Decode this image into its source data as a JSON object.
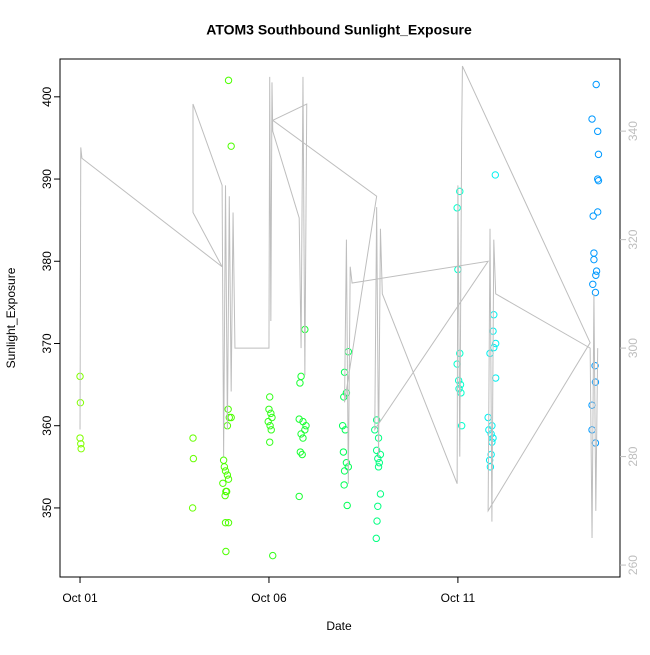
{
  "chart_data": {
    "type": "scatter",
    "title": "ATOM3 Southbound Sunlight_Exposure",
    "x_label": "Date",
    "y_label": "Sunlight_Exposure",
    "xlim": [
      0.47,
      15.29
    ],
    "ylim": [
      341.6,
      404.6
    ],
    "y2lim": [
      257.8,
      353.3
    ],
    "xticks": [
      {
        "value": 1,
        "label": "Oct 01"
      },
      {
        "value": 6,
        "label": "Oct 06"
      },
      {
        "value": 11,
        "label": "Oct 11"
      }
    ],
    "yticks": [
      350,
      360,
      370,
      380,
      390,
      400
    ],
    "y2ticks": [
      260,
      280,
      300,
      320,
      340
    ],
    "groups": [
      {
        "color": "#80ff00",
        "x": [
          1.0,
          1.01,
          1.0,
          1.02,
          1.03
        ],
        "y": [
          366,
          362.8,
          358.5,
          357.8,
          357.2
        ]
      },
      {
        "color": "#66ff00",
        "x": [
          3.99,
          4.0,
          3.98
        ],
        "y": [
          358.5,
          356,
          350
        ]
      },
      {
        "color": "#4dff00",
        "x": [
          4.93,
          5.0,
          4.92,
          4.95,
          5.0,
          4.9,
          4.8,
          4.82,
          4.85,
          4.9,
          4.93,
          4.78,
          4.86,
          4.88,
          4.84,
          4.85,
          4.93,
          4.86
        ],
        "y": [
          402,
          394,
          362,
          361,
          361,
          360,
          355.8,
          355,
          354.5,
          354,
          353.5,
          353,
          352,
          352,
          351.5,
          348.2,
          348.2,
          344.7
        ]
      },
      {
        "color": "#33ff1a",
        "x": [
          6.02,
          6.0,
          6.05,
          6.08,
          5.98,
          6.03,
          6.06,
          6.02,
          6.1
        ],
        "y": [
          363.5,
          362,
          361.5,
          361,
          360.5,
          360,
          359.5,
          358,
          344.2
        ]
      },
      {
        "color": "#1aff33",
        "x": [
          6.95,
          6.85,
          6.82,
          6.8,
          6.9,
          6.98,
          6.95,
          6.85,
          6.9,
          6.83,
          6.88,
          6.8
        ],
        "y": [
          371.7,
          366,
          365.2,
          360.8,
          360.5,
          360,
          359.5,
          359,
          358.5,
          356.8,
          356.5,
          351.4
        ]
      },
      {
        "color": "#00ff55",
        "x": [
          8.1,
          8.0,
          8.05,
          7.98,
          7.95,
          8.02,
          7.97,
          8.05,
          8.1,
          8.0,
          7.99,
          8.07
        ],
        "y": [
          369,
          366.5,
          364,
          363.5,
          360,
          359.5,
          356.8,
          355.5,
          355,
          354.5,
          352.8,
          350.3
        ]
      },
      {
        "color": "#00ff80",
        "x": [
          8.85,
          8.8,
          8.9,
          8.85,
          8.95,
          8.88,
          8.92,
          8.9,
          8.95,
          8.88,
          8.86,
          8.84
        ],
        "y": [
          360.7,
          359.5,
          358.5,
          357,
          356.5,
          356,
          355.5,
          355,
          351.7,
          350.2,
          348.4,
          346.3
        ]
      },
      {
        "color": "#00ffcc",
        "x": [
          11.05,
          10.98,
          11.0,
          11.05,
          10.98,
          11.02,
          11.07,
          11.03,
          11.08,
          11.1
        ],
        "y": [
          388.5,
          386.5,
          379,
          368.8,
          367.5,
          365.5,
          365,
          364.5,
          364,
          360
        ]
      },
      {
        "color": "#00f0f0",
        "x": [
          11.99,
          11.95,
          11.93,
          12.0,
          11.95,
          11.85,
          11.8,
          11.9,
          11.82,
          11.88,
          11.93,
          11.9,
          11.88,
          11.84,
          11.86,
          12.0
        ],
        "y": [
          390.5,
          373.5,
          371.5,
          370,
          369.5,
          368.8,
          361,
          360,
          359.5,
          359,
          358.5,
          358,
          356.5,
          355.8,
          355,
          365.8
        ]
      },
      {
        "color": "#0099ff",
        "x": [
          14.66,
          14.55,
          14.7,
          14.72,
          14.7,
          14.72,
          14.7,
          14.58,
          14.6,
          14.6,
          14.67,
          14.65,
          14.57,
          14.64,
          14.63,
          14.64,
          14.55,
          14.55,
          14.64
        ],
        "y": [
          401.5,
          397.3,
          395.8,
          393,
          390,
          389.8,
          386,
          385.5,
          381,
          380.2,
          378.8,
          378.3,
          377.2,
          376.2,
          367.3,
          365.3,
          362.5,
          359.5,
          357.9
        ]
      }
    ],
    "line": {
      "color": "#bebebe",
      "axis": "y2",
      "x": [
        1.0,
        1.02,
        1.05,
        4.76,
        3.99,
        3.99,
        4.76,
        4.8,
        4.85,
        4.9,
        4.95,
        5.0,
        5.05,
        5.1,
        6.0,
        6.02,
        6.05,
        6.08,
        6.1,
        6.8,
        6.85,
        6.9,
        6.95,
        7.0,
        6.1,
        8.85,
        8.0,
        8.05,
        8.1,
        8.15,
        8.2,
        11.8,
        8.8,
        8.85,
        8.9,
        8.95,
        9.0,
        10.98,
        11.0,
        11.05,
        11.1,
        11.12,
        14.5,
        11.8,
        11.85,
        11.9,
        11.95,
        12.0,
        14.5,
        14.55,
        14.6,
        14.65,
        14.7
      ],
      "values": [
        285,
        337,
        335,
        315,
        325,
        345,
        330,
        280,
        330,
        285,
        328,
        292,
        325,
        300,
        300,
        350,
        305,
        349,
        340,
        324,
        300,
        350,
        295,
        345,
        342,
        328,
        290,
        320,
        275,
        315,
        312,
        316,
        285,
        326,
        280,
        322,
        310,
        275,
        330,
        280,
        340,
        352,
        301,
        270,
        322,
        268,
        320,
        310,
        300,
        265,
        310,
        270,
        300
      ]
    }
  }
}
